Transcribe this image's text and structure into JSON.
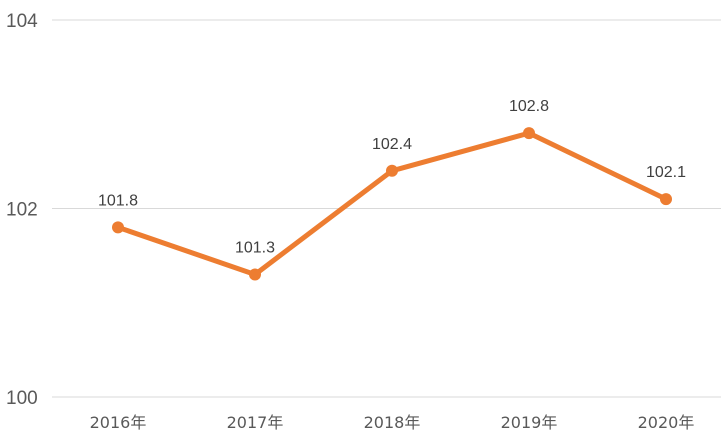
{
  "chart_data": {
    "type": "line",
    "categories": [
      "2016年",
      "2017年",
      "2018年",
      "2019年",
      "2020年"
    ],
    "series": [
      {
        "values": [
          101.8,
          101.3,
          102.4,
          102.8,
          102.1
        ]
      }
    ],
    "ylim": [
      100,
      104
    ],
    "yticks": [
      100,
      102,
      104
    ],
    "data_labels": [
      "101.8",
      "101.3",
      "102.4",
      "102.8",
      "102.1"
    ],
    "grid": true,
    "line_color": "#ED7D31",
    "grid_color": "#D9D9D9"
  }
}
